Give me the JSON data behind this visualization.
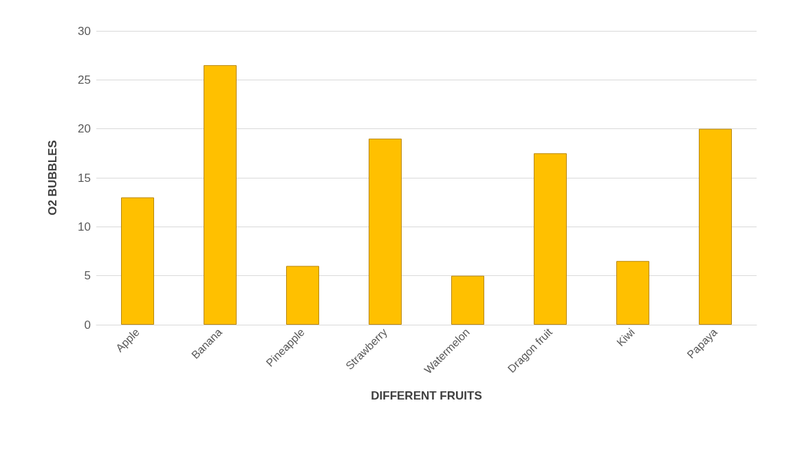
{
  "chart_data": {
    "type": "bar",
    "xlabel": "DIFFERENT FRUITS",
    "ylabel": "O2 BUBBLES",
    "categories": [
      "Apple",
      "Banana",
      "Pineapple",
      "Strawberry",
      "Watermelon",
      "Dragon fruit",
      "Kiwi",
      "Papaya"
    ],
    "values": [
      13,
      26.5,
      6,
      19,
      5,
      17.5,
      6.5,
      20
    ],
    "color": "#ffc000",
    "ylim": [
      0,
      30
    ],
    "yticks": [
      0,
      5,
      10,
      15,
      20,
      25,
      30
    ],
    "grid": "y"
  }
}
